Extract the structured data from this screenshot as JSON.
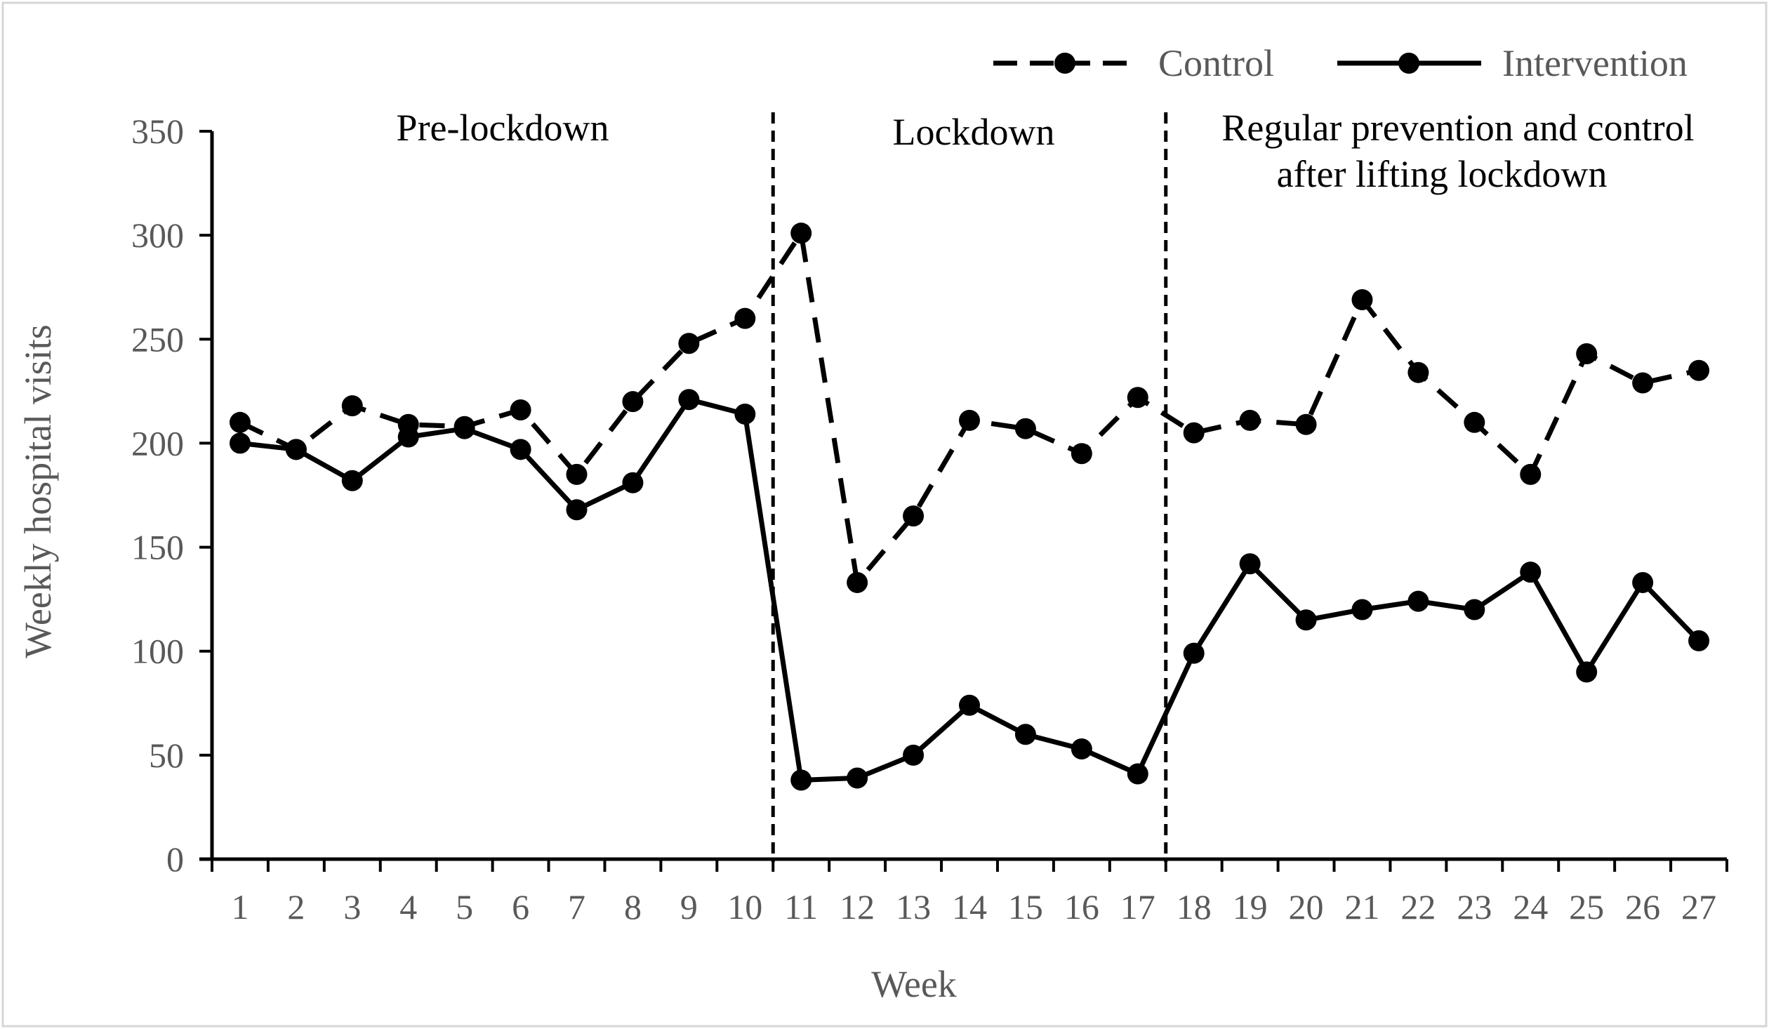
{
  "chart_data": {
    "type": "line",
    "title": "",
    "xlabel": "Week",
    "ylabel": "Weekly hospital visits",
    "ylim": [
      0,
      350
    ],
    "yticks": [
      0,
      50,
      100,
      150,
      200,
      250,
      300,
      350
    ],
    "categories": [
      "1",
      "2",
      "3",
      "4",
      "5",
      "6",
      "7",
      "8",
      "9",
      "10",
      "11",
      "12",
      "13",
      "14",
      "15",
      "16",
      "17",
      "18",
      "19",
      "20",
      "21",
      "22",
      "23",
      "24",
      "25",
      "26",
      "27"
    ],
    "series": [
      {
        "name": "Control",
        "style": "dashed",
        "values": [
          210,
          197,
          218,
          209,
          208,
          216,
          185,
          220,
          248,
          260,
          301,
          133,
          165,
          211,
          207,
          195,
          222,
          205,
          211,
          209,
          269,
          234,
          210,
          185,
          243,
          229,
          235
        ]
      },
      {
        "name": "Intervention",
        "style": "solid",
        "values": [
          200,
          197,
          182,
          203,
          207,
          197,
          168,
          181,
          221,
          214,
          38,
          39,
          50,
          74,
          60,
          53,
          41,
          99,
          142,
          115,
          120,
          124,
          120,
          138,
          90,
          133,
          105
        ]
      }
    ],
    "legend": {
      "position": "top-right",
      "entries": [
        "Control",
        "Intervention"
      ]
    },
    "phase_dividers_after_week": [
      10.5,
      17.5
    ],
    "annotations": [
      {
        "text": "Pre-lockdown"
      },
      {
        "text": "Lockdown"
      },
      {
        "text": "Regular prevention and control"
      },
      {
        "text": "after lifting lockdown"
      }
    ],
    "colors": {
      "line": "#000000",
      "tick_text": "#595959",
      "frame": "#d6d6d6"
    }
  }
}
